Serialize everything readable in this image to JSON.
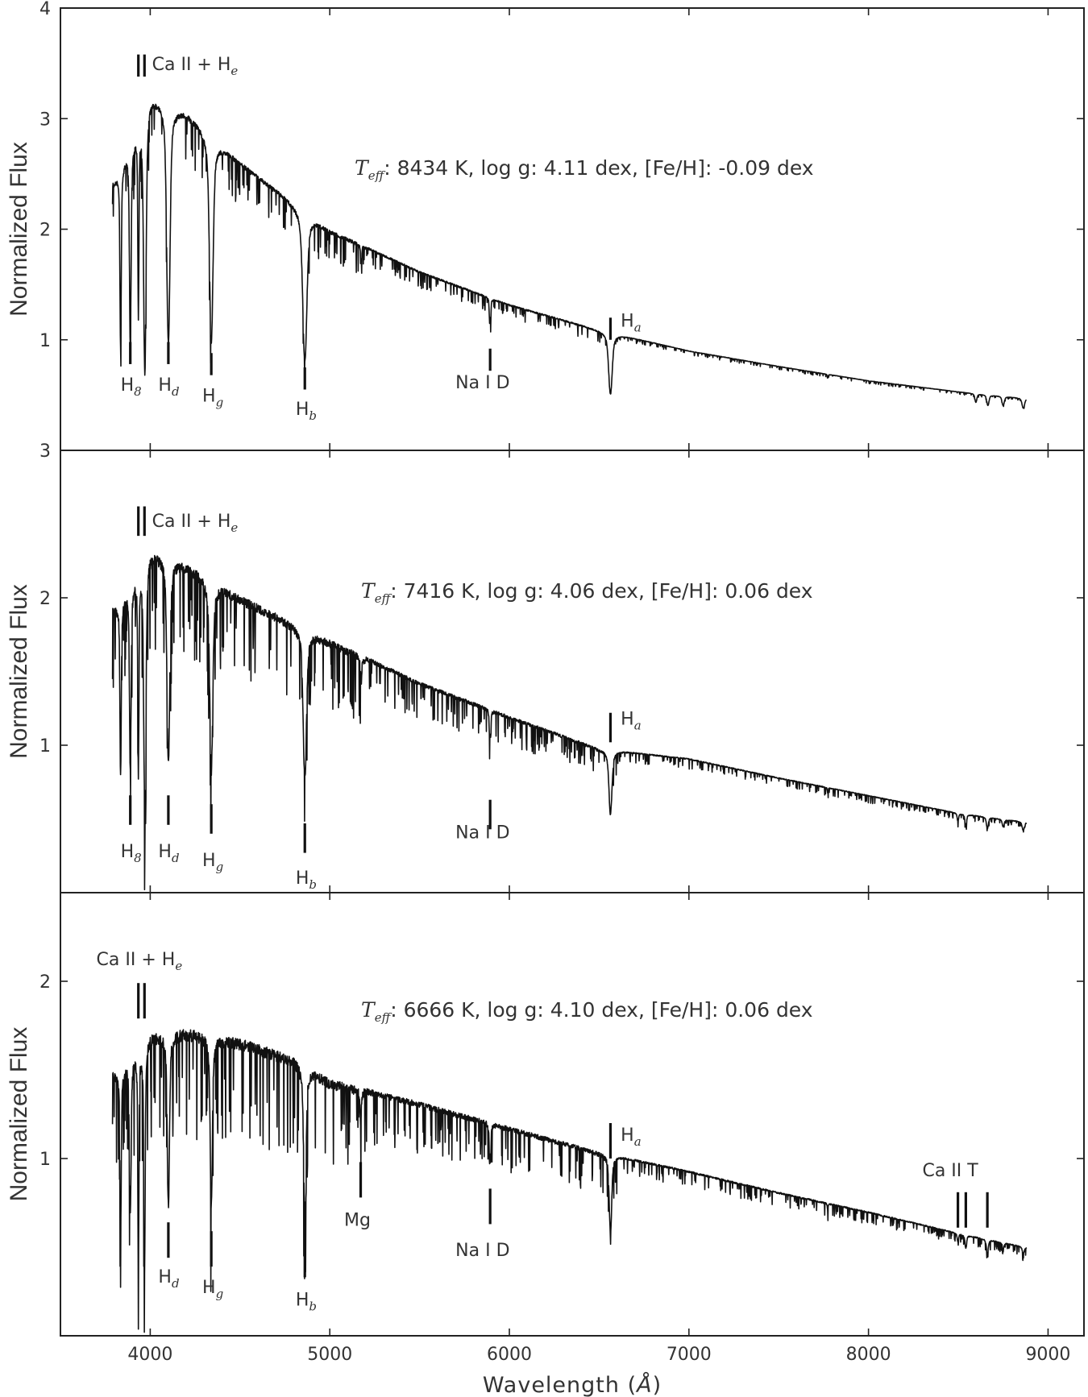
{
  "chart_data": [
    {
      "type": "line",
      "title": "",
      "xlabel": "Wavelength",
      "xlabel_unit": "Å",
      "ylabel": "Normalized Flux",
      "xlim": [
        3500,
        9200
      ],
      "ylim": [
        0,
        4
      ],
      "yticks": [
        1,
        2,
        3,
        4
      ],
      "ytick_labels": [
        "1",
        "2",
        "3",
        "4"
      ],
      "params": {
        "teff_symbol": "T",
        "teff_sub": "eff",
        "text": ": 8434 K,  log g: 4.11 dex, [Fe/H]: -0.09 dex"
      },
      "continuum": {
        "x": [
          3800,
          4000,
          4200,
          4500,
          5000,
          5500,
          6000,
          6500,
          7000,
          7500,
          8000,
          8500,
          8880
        ],
        "y": [
          2.45,
          3.25,
          3.08,
          2.62,
          2.0,
          1.62,
          1.32,
          1.09,
          0.9,
          0.76,
          0.63,
          0.53,
          0.47
        ]
      },
      "lines": [
        {
          "x": 3835,
          "depth": 0.62,
          "width": 5
        },
        {
          "x": 3889,
          "depth": 0.64,
          "width": 6
        },
        {
          "x": 3934,
          "depth": 0.55,
          "width": 4
        },
        {
          "x": 3970,
          "depth": 0.76,
          "width": 9
        },
        {
          "x": 4101,
          "depth": 0.68,
          "width": 12
        },
        {
          "x": 4340,
          "depth": 0.65,
          "width": 13
        },
        {
          "x": 4861,
          "depth": 0.62,
          "width": 15
        },
        {
          "x": 5175,
          "depth": 0.08,
          "width": 4
        },
        {
          "x": 5890,
          "depth": 0.15,
          "width": 3
        },
        {
          "x": 5896,
          "depth": 0.12,
          "width": 3
        },
        {
          "x": 6563,
          "depth": 0.52,
          "width": 13
        },
        {
          "x": 7773,
          "depth": 0.05,
          "width": 3
        },
        {
          "x": 8598,
          "depth": 0.15,
          "width": 7
        },
        {
          "x": 8665,
          "depth": 0.19,
          "width": 8
        },
        {
          "x": 8750,
          "depth": 0.17,
          "width": 8
        },
        {
          "x": 8862,
          "depth": 0.19,
          "width": 9
        }
      ],
      "noise": 0.03,
      "markers": [
        {
          "x": 3934,
          "y1": 3.58,
          "y2": 3.38,
          "double": 3968
        },
        {
          "x": 3889,
          "y1": 0.98,
          "y2": 0.78
        },
        {
          "x": 4101,
          "y1": 0.98,
          "y2": 0.78
        },
        {
          "x": 4340,
          "y1": 0.88,
          "y2": 0.68
        },
        {
          "x": 4861,
          "y1": 0.75,
          "y2": 0.55
        },
        {
          "x": 5893,
          "y1": 0.92,
          "y2": 0.72
        },
        {
          "x": 6563,
          "y1": 1.2,
          "y2": 1.0
        }
      ],
      "annotations": [
        {
          "x": 4010,
          "y": 3.44,
          "text": "Ca II + H",
          "sub": "e"
        },
        {
          "x": 3835,
          "y": 0.54,
          "text": "H",
          "sub": "8"
        },
        {
          "x": 4045,
          "y": 0.54,
          "text": "H",
          "sub": "d"
        },
        {
          "x": 4290,
          "y": 0.44,
          "text": "H",
          "sub": "g"
        },
        {
          "x": 4810,
          "y": 0.32,
          "text": "H",
          "sub": "b"
        },
        {
          "x": 5700,
          "y": 0.56,
          "text": "Na I D",
          "sub": ""
        },
        {
          "x": 6620,
          "y": 1.12,
          "text": "H",
          "sub": "a"
        }
      ]
    },
    {
      "type": "line",
      "title": "",
      "xlabel": "Wavelength",
      "xlabel_unit": "Å",
      "ylabel": "Normalized Flux",
      "xlim": [
        3500,
        9200
      ],
      "ylim": [
        0,
        3
      ],
      "yticks": [
        1,
        2,
        3
      ],
      "ytick_labels": [
        "1",
        "2",
        "3"
      ],
      "params": {
        "teff_symbol": "T",
        "teff_sub": "eff",
        "text": ": 7416 K,  log g: 4.06 dex, [Fe/H]: 0.06 dex"
      },
      "continuum": {
        "x": [
          3800,
          4000,
          4200,
          4500,
          5000,
          5500,
          6000,
          6500,
          7000,
          7500,
          8000,
          8500,
          8880
        ],
        "y": [
          1.95,
          2.35,
          2.25,
          2.02,
          1.72,
          1.43,
          1.2,
          0.98,
          0.91,
          0.78,
          0.66,
          0.54,
          0.48
        ]
      },
      "lines": [
        {
          "x": 3835,
          "depth": 0.58,
          "width": 5
        },
        {
          "x": 3889,
          "depth": 0.58,
          "width": 6
        },
        {
          "x": 3934,
          "depth": 0.6,
          "width": 4
        },
        {
          "x": 3970,
          "depth": 0.75,
          "width": 8
        },
        {
          "x": 4101,
          "depth": 0.6,
          "width": 10
        },
        {
          "x": 4340,
          "depth": 0.6,
          "width": 11
        },
        {
          "x": 4861,
          "depth": 0.56,
          "width": 12
        },
        {
          "x": 5175,
          "depth": 0.1,
          "width": 4
        },
        {
          "x": 5890,
          "depth": 0.16,
          "width": 3
        },
        {
          "x": 5896,
          "depth": 0.13,
          "width": 3
        },
        {
          "x": 6563,
          "depth": 0.44,
          "width": 11
        },
        {
          "x": 7773,
          "depth": 0.05,
          "width": 3
        },
        {
          "x": 8498,
          "depth": 0.1,
          "width": 5
        },
        {
          "x": 8542,
          "depth": 0.14,
          "width": 6
        },
        {
          "x": 8662,
          "depth": 0.15,
          "width": 7
        },
        {
          "x": 8750,
          "depth": 0.1,
          "width": 7
        },
        {
          "x": 8862,
          "depth": 0.12,
          "width": 8
        }
      ],
      "noise": 0.055,
      "markers": [
        {
          "x": 3934,
          "y1": 2.62,
          "y2": 2.42,
          "double": 3968
        },
        {
          "x": 3889,
          "y1": 0.66,
          "y2": 0.46
        },
        {
          "x": 4101,
          "y1": 0.66,
          "y2": 0.46
        },
        {
          "x": 4340,
          "y1": 0.6,
          "y2": 0.4
        },
        {
          "x": 4861,
          "y1": 0.47,
          "y2": 0.27
        },
        {
          "x": 5893,
          "y1": 0.63,
          "y2": 0.43
        },
        {
          "x": 6563,
          "y1": 1.22,
          "y2": 1.02
        }
      ],
      "annotations": [
        {
          "x": 4010,
          "y": 2.48,
          "text": "Ca II + H",
          "sub": "e"
        },
        {
          "x": 3835,
          "y": 0.24,
          "text": "H",
          "sub": "8"
        },
        {
          "x": 4045,
          "y": 0.24,
          "text": "H",
          "sub": "d"
        },
        {
          "x": 4290,
          "y": 0.18,
          "text": "H",
          "sub": "g"
        },
        {
          "x": 4810,
          "y": 0.06,
          "text": "H",
          "sub": "b"
        },
        {
          "x": 5700,
          "y": 0.37,
          "text": "Na I D",
          "sub": ""
        },
        {
          "x": 6620,
          "y": 1.14,
          "text": "H",
          "sub": "a"
        }
      ]
    },
    {
      "type": "line",
      "title": "",
      "xlabel": "Wavelength",
      "xlabel_unit": "Å",
      "ylabel": "Normalized Flux",
      "xlim": [
        3500,
        9200
      ],
      "ylim": [
        0,
        2.5
      ],
      "xticks": [
        4000,
        5000,
        6000,
        7000,
        8000,
        9000
      ],
      "xtick_labels": [
        "4000",
        "5000",
        "6000",
        "7000",
        "8000",
        "9000"
      ],
      "yticks": [
        1,
        2
      ],
      "ytick_labels": [
        "1",
        "2"
      ],
      "params": {
        "teff_symbol": "T",
        "teff_sub": "eff",
        "text": ": 6666 K,  log g: 4.10 dex, [Fe/H]: 0.06 dex"
      },
      "continuum": {
        "x": [
          3800,
          4000,
          4200,
          4500,
          4800,
          5000,
          5500,
          6000,
          6500,
          7000,
          7500,
          8000,
          8500,
          8880
        ],
        "y": [
          1.5,
          1.72,
          1.74,
          1.68,
          1.58,
          1.45,
          1.32,
          1.18,
          1.04,
          0.93,
          0.81,
          0.7,
          0.58,
          0.5
        ]
      },
      "lines": [
        {
          "x": 3835,
          "depth": 0.6,
          "width": 5
        },
        {
          "x": 3889,
          "depth": 0.55,
          "width": 6
        },
        {
          "x": 3934,
          "depth": 0.75,
          "width": 4
        },
        {
          "x": 3968,
          "depth": 0.76,
          "width": 5
        },
        {
          "x": 4101,
          "depth": 0.55,
          "width": 8
        },
        {
          "x": 4340,
          "depth": 0.55,
          "width": 8
        },
        {
          "x": 4861,
          "depth": 0.52,
          "width": 9
        },
        {
          "x": 5172,
          "depth": 0.15,
          "width": 4
        },
        {
          "x": 5890,
          "depth": 0.18,
          "width": 3
        },
        {
          "x": 5896,
          "depth": 0.15,
          "width": 3
        },
        {
          "x": 6563,
          "depth": 0.42,
          "width": 9
        },
        {
          "x": 7773,
          "depth": 0.05,
          "width": 3
        },
        {
          "x": 8498,
          "depth": 0.08,
          "width": 5
        },
        {
          "x": 8542,
          "depth": 0.13,
          "width": 6
        },
        {
          "x": 8662,
          "depth": 0.14,
          "width": 7
        },
        {
          "x": 8750,
          "depth": 0.06,
          "width": 6
        },
        {
          "x": 8862,
          "depth": 0.07,
          "width": 7
        }
      ],
      "noise": 0.07,
      "markers": [
        {
          "x": 3934,
          "y1": 1.99,
          "y2": 1.79,
          "double": 3968
        },
        {
          "x": 4101,
          "y1": 0.64,
          "y2": 0.44
        },
        {
          "x": 4340,
          "y1": 0.59,
          "y2": 0.39
        },
        {
          "x": 4861,
          "y1": 0.53,
          "y2": 0.33
        },
        {
          "x": 5172,
          "y1": 0.98,
          "y2": 0.78
        },
        {
          "x": 5893,
          "y1": 0.83,
          "y2": 0.63
        },
        {
          "x": 6563,
          "y1": 1.2,
          "y2": 1.0
        },
        {
          "x": 8498,
          "y1": 0.81,
          "y2": 0.61,
          "double": 8542,
          "triple": 8662
        }
      ],
      "annotations": [
        {
          "x": 3700,
          "y": 2.09,
          "text": "Ca II + H",
          "sub": "e"
        },
        {
          "x": 4045,
          "y": 0.3,
          "text": "H",
          "sub": "d"
        },
        {
          "x": 4290,
          "y": 0.24,
          "text": "H",
          "sub": "g"
        },
        {
          "x": 4810,
          "y": 0.17,
          "text": "H",
          "sub": "b"
        },
        {
          "x": 5080,
          "y": 0.62,
          "text": "Mg",
          "sub": ""
        },
        {
          "x": 5700,
          "y": 0.45,
          "text": "Na I D",
          "sub": ""
        },
        {
          "x": 6620,
          "y": 1.1,
          "text": "H",
          "sub": "a"
        },
        {
          "x": 8300,
          "y": 0.9,
          "text": "Ca II T",
          "sub": ""
        }
      ]
    }
  ]
}
